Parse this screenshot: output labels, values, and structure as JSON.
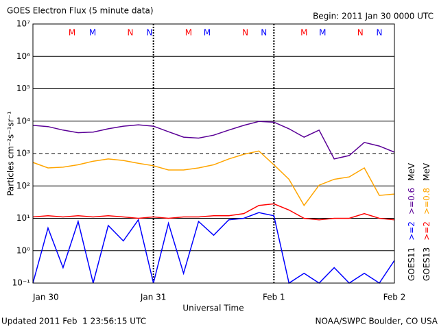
{
  "chart_data": {
    "type": "line",
    "title": "GOES Electron Flux (5 minute data)",
    "subtitle": "Begin: 2011 Jan 30 0000 UTC",
    "x_label": "Universal Time",
    "y_label": "Particles cm⁻²s⁻¹sr⁻¹",
    "footer_left": "Updated 2011 Feb  1 23:56:15 UTC",
    "footer_right": "NOAA/SWPC Boulder, CO USA",
    "log_y": true,
    "grid": true,
    "dashed_grid_value": 1000,
    "xlim": [
      0,
      72
    ],
    "xticks": [
      {
        "value": 0,
        "label": "Jan 30"
      },
      {
        "value": 24,
        "label": "Jan 31"
      },
      {
        "value": 48,
        "label": "Feb 1"
      },
      {
        "value": 72,
        "label": "Feb 2"
      }
    ],
    "ylim": [
      0.1,
      10000000
    ],
    "yticks": [
      {
        "value": 0.1,
        "label": "10⁻¹"
      },
      {
        "value": 1,
        "label": "10⁰"
      },
      {
        "value": 10,
        "label": "10¹"
      },
      {
        "value": 100,
        "label": "10²"
      },
      {
        "value": 1000,
        "label": "10³"
      },
      {
        "value": 10000,
        "label": "10⁴"
      },
      {
        "value": 100000,
        "label": "10⁵"
      },
      {
        "value": 1000000,
        "label": "10⁶"
      },
      {
        "value": 10000000,
        "label": "10⁷"
      }
    ],
    "x": [
      0,
      3,
      6,
      9,
      12,
      15,
      18,
      21,
      24,
      27,
      30,
      33,
      36,
      39,
      42,
      45,
      48,
      51,
      54,
      57,
      60,
      63,
      66,
      69,
      72
    ],
    "legend_groups": [
      {
        "satellite": "GOES11",
        "unit": "MeV"
      },
      {
        "satellite": "GOES13",
        "unit": "MeV"
      }
    ],
    "series": [
      {
        "name": ">=2",
        "color": "#0000ff",
        "values": [
          0.1,
          5,
          0.3,
          8,
          0.1,
          6,
          2,
          9,
          0.1,
          7,
          0.2,
          8,
          3,
          9,
          10,
          15,
          12,
          0.1,
          0.2,
          0.1,
          0.3,
          0.1,
          0.2,
          0.1,
          0.5
        ]
      },
      {
        "name": ">=0.6",
        "color": "#5a0096",
        "values": [
          7400,
          6800,
          5300,
          4400,
          4600,
          5800,
          7000,
          7700,
          7000,
          4700,
          3200,
          3000,
          3700,
          5300,
          7400,
          9800,
          9300,
          5800,
          3200,
          5300,
          680,
          870,
          2200,
          1700,
          1100
        ]
      },
      {
        "name": ">=2",
        "color": "#ff0000",
        "values": [
          11,
          12,
          11,
          12,
          11,
          12,
          11,
          10,
          11,
          10,
          11,
          11,
          12,
          12,
          14,
          25,
          28,
          18,
          10,
          9,
          10,
          10,
          14,
          10,
          9
        ]
      },
      {
        "name": ">=0.8",
        "color": "#ffa500",
        "values": [
          530,
          360,
          380,
          450,
          580,
          680,
          610,
          500,
          420,
          310,
          310,
          360,
          450,
          680,
          950,
          1200,
          450,
          160,
          25,
          105,
          160,
          190,
          360,
          51,
          56
        ]
      }
    ],
    "markers": [
      {
        "label": "M",
        "x": 7.8,
        "color": "#ff0000"
      },
      {
        "label": "M",
        "x": 11.9,
        "color": "#0000ff"
      },
      {
        "label": "N",
        "x": 19.4,
        "color": "#ff0000"
      },
      {
        "label": "N",
        "x": 23.2,
        "color": "#0000ff"
      },
      {
        "label": "M",
        "x": 31.0,
        "color": "#ff0000"
      },
      {
        "label": "M",
        "x": 34.7,
        "color": "#0000ff"
      },
      {
        "label": "N",
        "x": 42.3,
        "color": "#ff0000"
      },
      {
        "label": "N",
        "x": 46.0,
        "color": "#0000ff"
      },
      {
        "label": "M",
        "x": 54.0,
        "color": "#ff0000"
      },
      {
        "label": "M",
        "x": 57.7,
        "color": "#0000ff"
      },
      {
        "label": "N",
        "x": 65.2,
        "color": "#ff0000"
      },
      {
        "label": "N",
        "x": 69.0,
        "color": "#0000ff"
      }
    ]
  }
}
